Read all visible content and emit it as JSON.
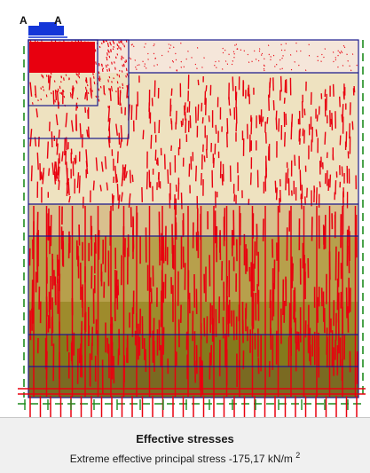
{
  "plot": {
    "point_labels": [
      "A",
      "A"
    ],
    "colors": {
      "layer_1": "#f5e6da",
      "layer_2": "#eee2c0",
      "layer_3": "#d9c08e",
      "layer_4": "#b7a04c",
      "layer_5": "#9e8b2c",
      "layer_6": "#857a1c",
      "layer_7": "#7a6a22",
      "stress_lines": "#e8000f",
      "boundary": "#1a1a8c",
      "fixities": "#1e8c1e",
      "load": "#1436d8"
    }
  },
  "caption": {
    "title": "Effective stresses",
    "subtitle": "Extreme effective principal stress -175,17 kN/m",
    "subtitle_sup": "2"
  }
}
